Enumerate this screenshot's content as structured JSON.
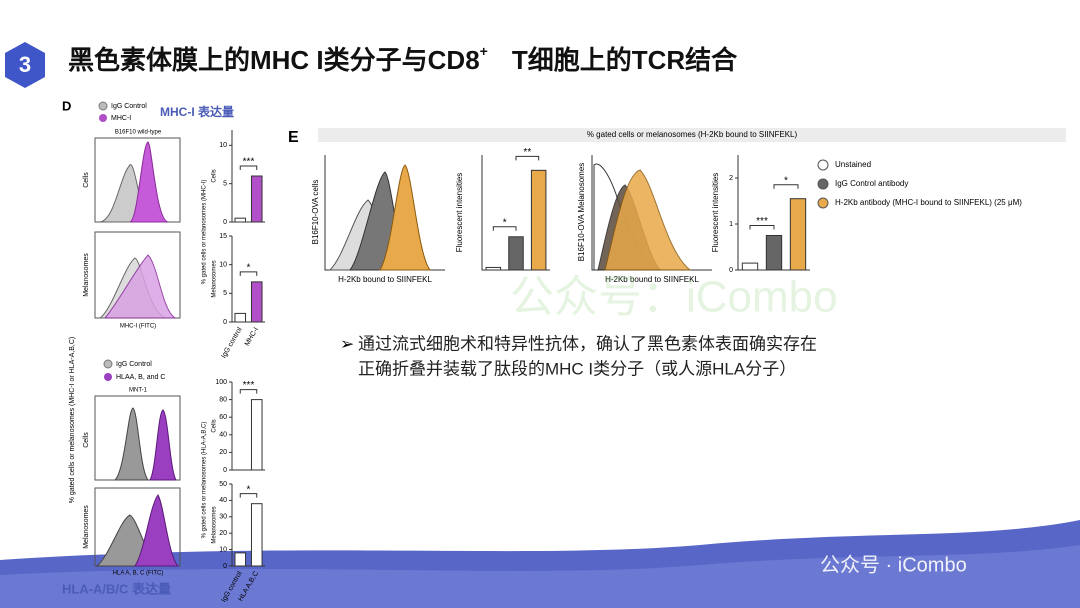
{
  "header": {
    "number": "3",
    "title_a": "黑色素体膜上的MHC I类分子与CD8",
    "title_sup": "+",
    "title_b": "T细胞上的TCR结合"
  },
  "panel_d": {
    "label": "D",
    "y_label": "% gated cells or melanosomes (MHC-I or HLA-A,B,C)",
    "top": {
      "legend": [
        "IgG Control",
        "MHC-I"
      ],
      "heading": "MHC-I 表达量",
      "sample": "B16F10 wild-type",
      "row_labels": [
        "Cells",
        "Melanosomes"
      ],
      "x_label": "MHC-I (FITC)"
    },
    "bottom": {
      "legend": [
        "IgG Control",
        "HLAA, B, and C"
      ],
      "heading": "HLA-A/B/C 表达量",
      "sample": "MNT-1",
      "row_labels": [
        "Cells",
        "Melanosomes"
      ],
      "x_label": "HLA A, B, C (FITC)"
    }
  },
  "panel_e": {
    "label": "E",
    "header": "% gated cells or melanosomes (H-2Kb bound to SIINFEKL)",
    "hist_y_labels": [
      "B16F10-OVA cells",
      "B16F10-OVA Melanosomes"
    ],
    "hist_x_labels": [
      "H-2Kb bound to SIINFEKL",
      "H-2Kb bound to SIINFEKL"
    ],
    "legend": [
      {
        "name": "Unstained",
        "color": "#ffffff"
      },
      {
        "name": "IgG Control antibody",
        "color": "#666666"
      },
      {
        "name": "H-2Kb antibody (MHC-I bound to SIINFEKL) (25 μM)",
        "color": "#e8a94a"
      }
    ]
  },
  "charts": [
    {
      "y_label": "% gated cells or melanosomes (MHC-I)",
      "side_label": "Cells",
      "ylim": [
        0,
        12
      ],
      "yticks": [
        0,
        5,
        10
      ],
      "values": [
        0.5,
        6
      ],
      "colors": [
        "#ffffff",
        "#b04fc8"
      ],
      "sig": [
        "***"
      ]
    },
    {
      "side_label": "Melanosomes",
      "ylim": [
        0,
        15
      ],
      "yticks": [
        0,
        5,
        10,
        15
      ],
      "values": [
        1.5,
        7
      ],
      "colors": [
        "#ffffff",
        "#b04fc8"
      ],
      "sig": [
        "*"
      ],
      "categories": [
        "IgG control",
        "MHC-I"
      ]
    },
    {
      "y_label": "% gated cells or melanosomes (HLA-A,B,C)",
      "side_label": "Cells",
      "ylim": [
        0,
        100
      ],
      "yticks": [
        0,
        20,
        40,
        60,
        80,
        100
      ],
      "values": [
        0,
        80
      ],
      "colors": [
        "#ffffff",
        "#ffffff"
      ],
      "sig": [
        "***"
      ]
    },
    {
      "side_label": "Melanosomes",
      "ylim": [
        0,
        50
      ],
      "yticks": [
        0,
        10,
        20,
        30,
        40,
        50
      ],
      "values": [
        8,
        38
      ],
      "colors": [
        "#ffffff",
        "#ffffff"
      ],
      "sig": [
        "*"
      ],
      "categories": [
        "IgG control",
        "HLA A,B,C"
      ]
    },
    {
      "y_label": "Fluorescent intensities",
      "ylim": [
        0,
        45
      ],
      "values": [
        1,
        13,
        39
      ],
      "colors": [
        "#ffffff",
        "#666666",
        "#e8a94a"
      ],
      "sig": [
        "*",
        "**"
      ]
    },
    {
      "y_label": "Fluorescent intensities",
      "ylim": [
        0,
        2.5
      ],
      "yticks": [
        0,
        1,
        2
      ],
      "values": [
        0.15,
        0.75,
        1.55
      ],
      "colors": [
        "#ffffff",
        "#666666",
        "#e8a94a"
      ],
      "sig": [
        "***",
        "*"
      ]
    }
  ],
  "bullet": [
    "通过流式细胞术和特异性抗体，确认了黑色素体表面确实存在",
    "正确折叠并装载了肽段的MHC I类分子（或人源HLA分子）"
  ],
  "watermarks": [
    "公众号：iCombo",
    "公众号 · iCombo"
  ]
}
